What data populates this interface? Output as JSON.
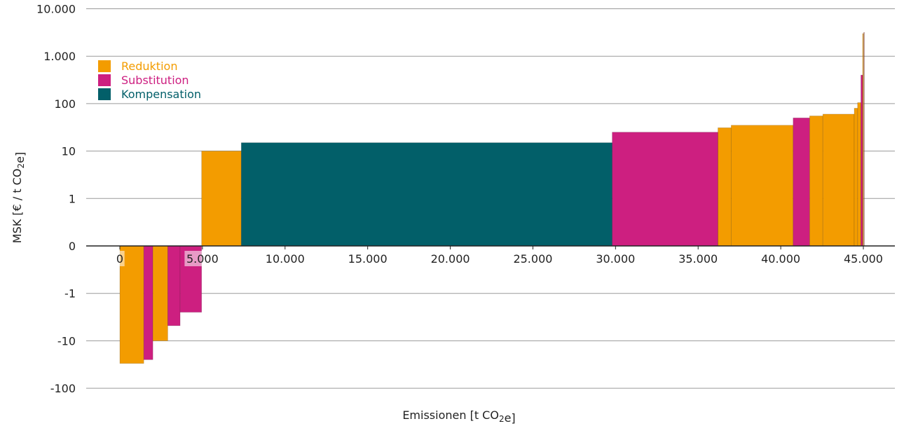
{
  "chart_data": {
    "type": "bar",
    "subtype": "marginal-abatement-cost-curve",
    "xlabel": "Emissionen [t CO2e]",
    "ylabel": "MSK [€ / t CO2e]",
    "y_scale": "symlog",
    "y_ticks": [
      {
        "value": -100,
        "label": "-100"
      },
      {
        "value": -10,
        "label": "-10"
      },
      {
        "value": -1,
        "label": "-1"
      },
      {
        "value": 0,
        "label": "0"
      },
      {
        "value": 1,
        "label": "1"
      },
      {
        "value": 10,
        "label": "10"
      },
      {
        "value": 100,
        "label": "100"
      },
      {
        "value": 1000,
        "label": "1.000"
      },
      {
        "value": 10000,
        "label": "10.000"
      }
    ],
    "x_ticks": [
      {
        "value": 0,
        "label": "0"
      },
      {
        "value": 5000,
        "label": "5.000"
      },
      {
        "value": 10000,
        "label": "10.000"
      },
      {
        "value": 15000,
        "label": "15.000"
      },
      {
        "value": 20000,
        "label": "20.000"
      },
      {
        "value": 25000,
        "label": "25.000"
      },
      {
        "value": 30000,
        "label": "30.000"
      },
      {
        "value": 35000,
        "label": "35.000"
      },
      {
        "value": 40000,
        "label": "40.000"
      },
      {
        "value": 45000,
        "label": "45.000"
      }
    ],
    "xlim": [
      -2000,
      47500
    ],
    "ylim": [
      -100,
      10000
    ],
    "grid": true,
    "legend_position": "top-left",
    "categories": [
      {
        "key": "reduktion",
        "name": "Reduktion",
        "color": "#f39c00"
      },
      {
        "key": "substitution",
        "name": "Substitution",
        "color": "#cd1f80"
      },
      {
        "key": "kompensation",
        "name": "Kompensation",
        "color": "#025f69"
      }
    ],
    "bars": [
      {
        "x_start": 0,
        "x_end": 1450,
        "value": -30,
        "category": "reduktion"
      },
      {
        "x_start": 1450,
        "x_end": 2000,
        "value": -25,
        "category": "substitution"
      },
      {
        "x_start": 2000,
        "x_end": 2900,
        "value": -10,
        "category": "reduktion"
      },
      {
        "x_start": 2900,
        "x_end": 3650,
        "value": -4.8,
        "category": "substitution"
      },
      {
        "x_start": 3650,
        "x_end": 4950,
        "value": -2.5,
        "category": "substitution"
      },
      {
        "x_start": 4950,
        "x_end": 7350,
        "value": 10,
        "category": "reduktion"
      },
      {
        "x_start": 7350,
        "x_end": 29800,
        "value": 15,
        "category": "kompensation"
      },
      {
        "x_start": 29800,
        "x_end": 36200,
        "value": 25,
        "category": "substitution"
      },
      {
        "x_start": 36200,
        "x_end": 37000,
        "value": 31,
        "category": "reduktion"
      },
      {
        "x_start": 37000,
        "x_end": 40750,
        "value": 35,
        "category": "reduktion"
      },
      {
        "x_start": 40750,
        "x_end": 41750,
        "value": 50,
        "category": "substitution"
      },
      {
        "x_start": 41750,
        "x_end": 42550,
        "value": 55,
        "category": "reduktion"
      },
      {
        "x_start": 42550,
        "x_end": 44450,
        "value": 60,
        "category": "reduktion"
      },
      {
        "x_start": 44450,
        "x_end": 44650,
        "value": 80,
        "category": "reduktion"
      },
      {
        "x_start": 44650,
        "x_end": 44850,
        "value": 105,
        "category": "reduktion"
      },
      {
        "x_start": 44850,
        "x_end": 44960,
        "value": 400,
        "category": "substitution"
      },
      {
        "x_start": 44960,
        "x_end": 45000,
        "value": 3000,
        "category": "reduktion"
      }
    ]
  }
}
